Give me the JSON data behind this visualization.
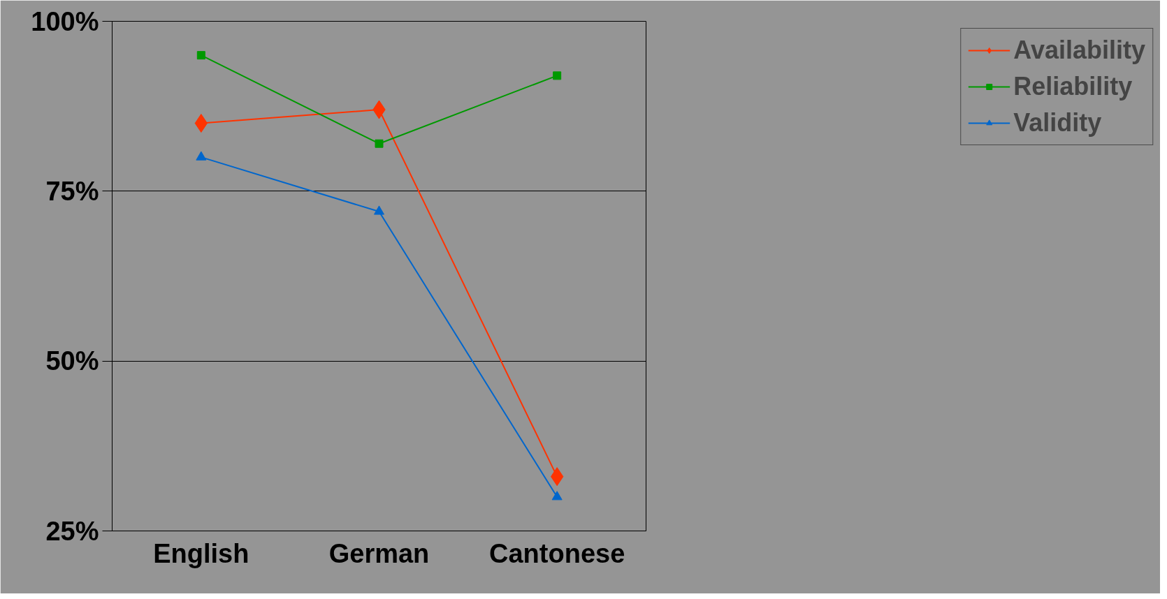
{
  "chart_data": {
    "type": "line",
    "categories": [
      "English",
      "German",
      "Cantonese"
    ],
    "series": [
      {
        "name": "Availability",
        "color": "#ff3300",
        "marker": "diamond",
        "values": [
          85,
          87,
          33
        ]
      },
      {
        "name": "Reliability",
        "color": "#009900",
        "marker": "square",
        "values": [
          95,
          82,
          92
        ]
      },
      {
        "name": "Validity",
        "color": "#0066cc",
        "marker": "triangle",
        "values": [
          80,
          72,
          30
        ]
      }
    ],
    "ylim": [
      25,
      100
    ],
    "yticks": [
      {
        "value": 25,
        "label": "25%"
      },
      {
        "value": 50,
        "label": "50%"
      },
      {
        "value": 75,
        "label": "75%"
      },
      {
        "value": 100,
        "label": "100%"
      }
    ],
    "grid": "y",
    "legend": "right",
    "line_style": "solid"
  }
}
